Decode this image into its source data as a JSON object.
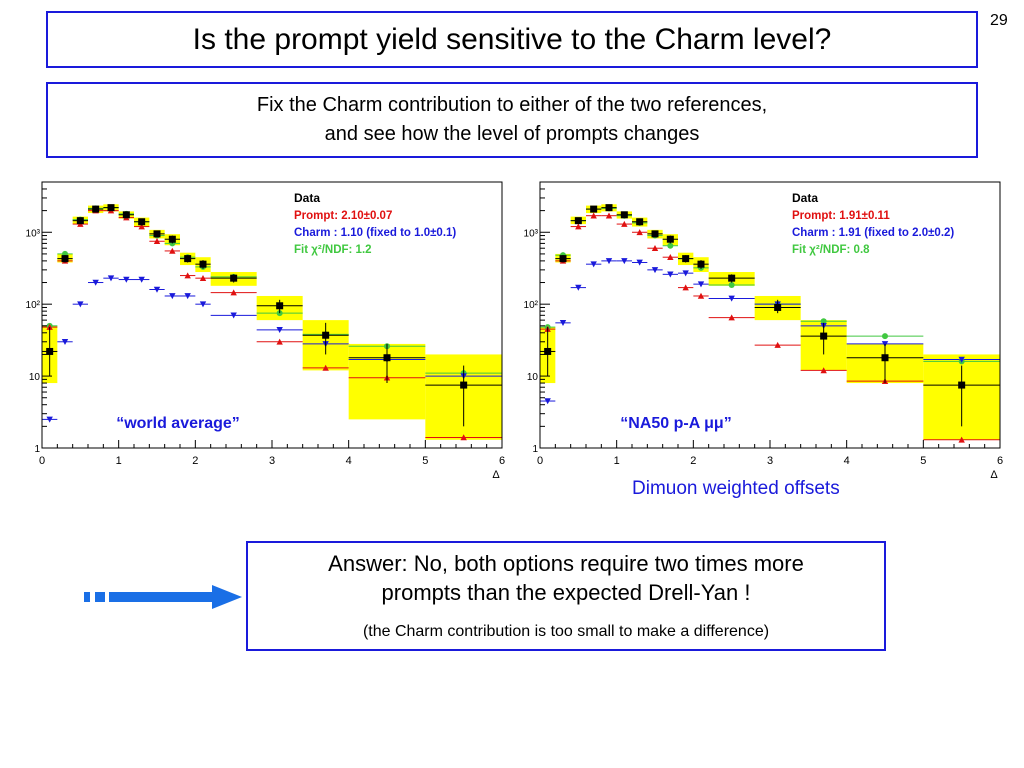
{
  "slide": {
    "number": "29",
    "title": "Is the prompt yield sensitive to the Charm level?",
    "subtitle_line1": "Fix the Charm contribution to either of the two references,",
    "subtitle_line2": "and see how the level of prompts changes",
    "offsets_caption": "Dimuon weighted offsets",
    "answer_line1": "Answer: No, both options require two times more",
    "answer_line2": "prompts than the expected Drell-Yan !",
    "answer_note": "(the Charm contribution is too small to make a difference)"
  },
  "colors": {
    "accent_border": "#1a1adb",
    "data": "#000000",
    "prompt": "#e01010",
    "charm": "#1a1adb",
    "fit": "#40c840",
    "band": "#ffff00",
    "arrow": "#1a6fe6"
  },
  "chart_data": [
    {
      "type": "scatter",
      "x_scale": "linear",
      "y_scale": "log",
      "xlim": [
        0,
        6
      ],
      "ylim": [
        1,
        5000
      ],
      "x_ticks": [
        "0",
        "1",
        "2",
        "3",
        "4",
        "5",
        "6"
      ],
      "y_ticks": [
        "1",
        "10",
        "10²",
        "10³"
      ],
      "xlabel": "Δ",
      "annotation": "“world average”",
      "legend": {
        "position": "top-right",
        "data_label": "Data",
        "prompt_label": "Prompt: 2.10±0.07",
        "charm_label": "Charm : 1.10 (fixed to 1.0±0.1)",
        "fit_label": "Fit   χ²/NDF:  1.2"
      },
      "bins": [
        {
          "xlo": 0.0,
          "xhi": 0.2,
          "data": 22,
          "data_err": [
            10,
            48
          ],
          "band": [
            8,
            50
          ],
          "prompt": 48,
          "charm": 2.5,
          "fit": 50
        },
        {
          "xlo": 0.2,
          "xhi": 0.4,
          "data": 430,
          "data_err": [
            380,
            480
          ],
          "band": [
            380,
            500
          ],
          "prompt": 400,
          "charm": 30,
          "fit": 500
        },
        {
          "xlo": 0.4,
          "xhi": 0.6,
          "data": 1450,
          "data_err": [
            1300,
            1600
          ],
          "band": [
            1300,
            1650
          ],
          "prompt": 1300,
          "charm": 100,
          "fit": 1500
        },
        {
          "xlo": 0.6,
          "xhi": 0.8,
          "data": 2100,
          "data_err": [
            1900,
            2300
          ],
          "band": [
            1850,
            2350
          ],
          "prompt": 2000,
          "charm": 200,
          "fit": 2150
        },
        {
          "xlo": 0.8,
          "xhi": 1.0,
          "data": 2200,
          "data_err": [
            2000,
            2400
          ],
          "band": [
            1950,
            2450
          ],
          "prompt": 2000,
          "charm": 230,
          "fit": 2200
        },
        {
          "xlo": 1.0,
          "xhi": 1.2,
          "data": 1750,
          "data_err": [
            1600,
            1900
          ],
          "band": [
            1550,
            1950
          ],
          "prompt": 1600,
          "charm": 220,
          "fit": 1800
        },
        {
          "xlo": 1.2,
          "xhi": 1.4,
          "data": 1400,
          "data_err": [
            1250,
            1550
          ],
          "band": [
            1200,
            1600
          ],
          "prompt": 1200,
          "charm": 220,
          "fit": 1400
        },
        {
          "xlo": 1.4,
          "xhi": 1.6,
          "data": 950,
          "data_err": [
            850,
            1050
          ],
          "band": [
            820,
            1080
          ],
          "prompt": 750,
          "charm": 160,
          "fit": 900
        },
        {
          "xlo": 1.6,
          "xhi": 1.8,
          "data": 800,
          "data_err": [
            700,
            900
          ],
          "band": [
            660,
            940
          ],
          "prompt": 550,
          "charm": 130,
          "fit": 700
        },
        {
          "xlo": 1.8,
          "xhi": 2.0,
          "data": 430,
          "data_err": [
            380,
            480
          ],
          "band": [
            350,
            520
          ],
          "prompt": 250,
          "charm": 130,
          "fit": 450
        },
        {
          "xlo": 2.0,
          "xhi": 2.2,
          "data": 360,
          "data_err": [
            310,
            410
          ],
          "band": [
            280,
            450
          ],
          "prompt": 230,
          "charm": 100,
          "fit": 330
        },
        {
          "xlo": 2.2,
          "xhi": 2.8,
          "data": 230,
          "data_err": [
            200,
            260
          ],
          "band": [
            180,
            280
          ],
          "prompt": 145,
          "charm": 70,
          "fit": 240
        },
        {
          "xlo": 2.8,
          "xhi": 3.4,
          "data": 95,
          "data_err": [
            75,
            115
          ],
          "band": [
            60,
            130
          ],
          "prompt": 30,
          "charm": 44,
          "fit": 75
        },
        {
          "xlo": 3.4,
          "xhi": 4.0,
          "data": 37,
          "data_err": [
            20,
            55
          ],
          "band": [
            12,
            60
          ],
          "prompt": 13,
          "charm": 28,
          "fit": 38
        },
        {
          "xlo": 4.0,
          "xhi": 5.0,
          "data": 18,
          "data_err": [
            8,
            28
          ],
          "band": [
            2.5,
            28
          ],
          "prompt": 9.5,
          "charm": 17,
          "fit": 26
        },
        {
          "xlo": 5.0,
          "xhi": 6.0,
          "data": 7.5,
          "data_err": [
            2,
            14
          ],
          "band": [
            1.3,
            20
          ],
          "prompt": 1.4,
          "charm": 10,
          "fit": 11
        }
      ]
    },
    {
      "type": "scatter",
      "x_scale": "linear",
      "y_scale": "log",
      "xlim": [
        0,
        6
      ],
      "ylim": [
        1,
        5000
      ],
      "x_ticks": [
        "0",
        "1",
        "2",
        "3",
        "4",
        "5",
        "6"
      ],
      "y_ticks": [
        "1",
        "10",
        "10²",
        "10³"
      ],
      "xlabel": "Δ",
      "annotation": "“NA50 p-A μμ”",
      "legend": {
        "position": "top-right",
        "data_label": "Data",
        "prompt_label": "Prompt: 1.91±0.11",
        "charm_label": "Charm : 1.91 (fixed to 2.0±0.2)",
        "fit_label": "Fit   χ²/NDF:  0.8"
      },
      "bins": [
        {
          "xlo": 0.0,
          "xhi": 0.2,
          "data": 22,
          "data_err": [
            10,
            48
          ],
          "band": [
            8,
            48
          ],
          "prompt": 45,
          "charm": 4.5,
          "fit": 48
        },
        {
          "xlo": 0.2,
          "xhi": 0.4,
          "data": 430,
          "data_err": [
            380,
            480
          ],
          "band": [
            380,
            500
          ],
          "prompt": 400,
          "charm": 55,
          "fit": 480
        },
        {
          "xlo": 0.4,
          "xhi": 0.6,
          "data": 1450,
          "data_err": [
            1300,
            1600
          ],
          "band": [
            1300,
            1650
          ],
          "prompt": 1200,
          "charm": 170,
          "fit": 1450
        },
        {
          "xlo": 0.6,
          "xhi": 0.8,
          "data": 2100,
          "data_err": [
            1900,
            2300
          ],
          "band": [
            1850,
            2350
          ],
          "prompt": 1700,
          "charm": 360,
          "fit": 2100
        },
        {
          "xlo": 0.8,
          "xhi": 1.0,
          "data": 2200,
          "data_err": [
            2000,
            2400
          ],
          "band": [
            1950,
            2450
          ],
          "prompt": 1700,
          "charm": 400,
          "fit": 2150
        },
        {
          "xlo": 1.0,
          "xhi": 1.2,
          "data": 1750,
          "data_err": [
            1600,
            1900
          ],
          "band": [
            1550,
            1950
          ],
          "prompt": 1300,
          "charm": 400,
          "fit": 1700
        },
        {
          "xlo": 1.2,
          "xhi": 1.4,
          "data": 1400,
          "data_err": [
            1250,
            1550
          ],
          "band": [
            1200,
            1600
          ],
          "prompt": 1000,
          "charm": 380,
          "fit": 1350
        },
        {
          "xlo": 1.4,
          "xhi": 1.6,
          "data": 950,
          "data_err": [
            850,
            1050
          ],
          "band": [
            820,
            1080
          ],
          "prompt": 600,
          "charm": 300,
          "fit": 900
        },
        {
          "xlo": 1.6,
          "xhi": 1.8,
          "data": 800,
          "data_err": [
            700,
            900
          ],
          "band": [
            660,
            940
          ],
          "prompt": 450,
          "charm": 260,
          "fit": 650
        },
        {
          "xlo": 1.8,
          "xhi": 2.0,
          "data": 430,
          "data_err": [
            380,
            480
          ],
          "band": [
            350,
            520
          ],
          "prompt": 170,
          "charm": 270,
          "fit": 430
        },
        {
          "xlo": 2.0,
          "xhi": 2.2,
          "data": 360,
          "data_err": [
            310,
            410
          ],
          "band": [
            280,
            450
          ],
          "prompt": 130,
          "charm": 190,
          "fit": 320
        },
        {
          "xlo": 2.2,
          "xhi": 2.8,
          "data": 230,
          "data_err": [
            200,
            260
          ],
          "band": [
            180,
            280
          ],
          "prompt": 65,
          "charm": 120,
          "fit": 185
        },
        {
          "xlo": 2.8,
          "xhi": 3.4,
          "data": 90,
          "data_err": [
            75,
            115
          ],
          "band": [
            60,
            130
          ],
          "prompt": 27,
          "charm": 100,
          "fit": 100
        },
        {
          "xlo": 3.4,
          "xhi": 4.0,
          "data": 36,
          "data_err": [
            20,
            55
          ],
          "band": [
            12,
            60
          ],
          "prompt": 12,
          "charm": 50,
          "fit": 58
        },
        {
          "xlo": 4.0,
          "xhi": 5.0,
          "data": 18,
          "data_err": [
            8,
            28
          ],
          "band": [
            8,
            28
          ],
          "prompt": 8.5,
          "charm": 28,
          "fit": 36
        },
        {
          "xlo": 5.0,
          "xhi": 6.0,
          "data": 7.5,
          "data_err": [
            2,
            14
          ],
          "band": [
            1.3,
            20
          ],
          "prompt": 1.3,
          "charm": 17,
          "fit": 16
        }
      ]
    }
  ]
}
